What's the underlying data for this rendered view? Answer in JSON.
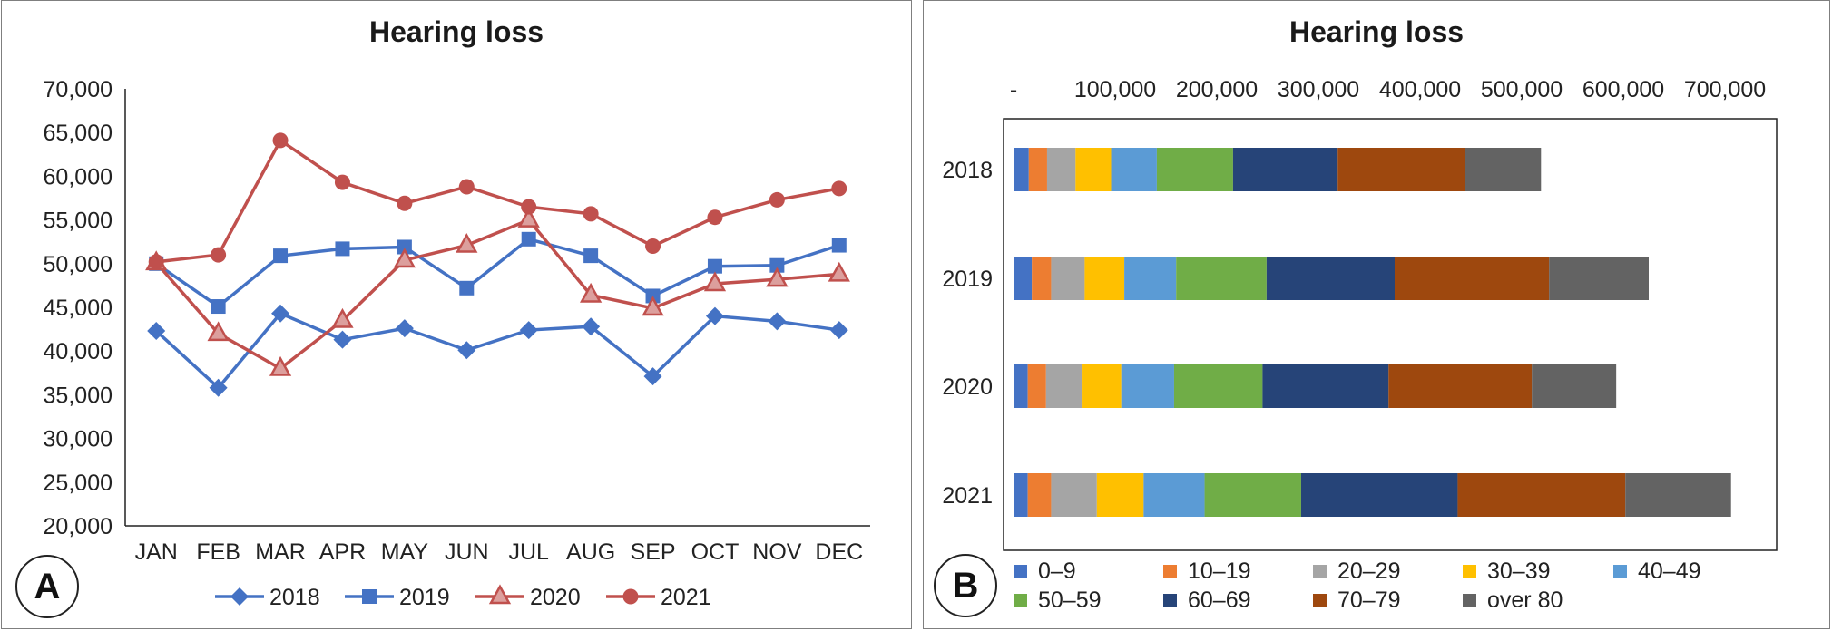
{
  "chart_data": [
    {
      "panel": "A",
      "type": "line",
      "title": "Hearing loss",
      "categories": [
        "JAN",
        "FEB",
        "MAR",
        "APR",
        "MAY",
        "JUN",
        "JUL",
        "AUG",
        "SEP",
        "OCT",
        "NOV",
        "DEC"
      ],
      "y_ticks": [
        "20,000",
        "25,000",
        "30,000",
        "35,000",
        "40,000",
        "45,000",
        "50,000",
        "55,000",
        "60,000",
        "65,000",
        "70,000"
      ],
      "ylim": [
        20000,
        70000
      ],
      "legend_position": "bottom",
      "series": [
        {
          "name": "2018",
          "color": "#4472c4",
          "marker": "diamond",
          "values": [
            42300,
            35800,
            44300,
            41300,
            42600,
            40100,
            42400,
            42800,
            37100,
            44000,
            43400,
            42400
          ]
        },
        {
          "name": "2019",
          "color": "#4472c4",
          "marker": "square",
          "values": [
            50000,
            45100,
            50900,
            51700,
            51900,
            47200,
            52800,
            50900,
            46300,
            49700,
            49800,
            52100
          ]
        },
        {
          "name": "2020",
          "color": "#c0504d",
          "marker": "triangle",
          "values": [
            50100,
            42000,
            38000,
            43500,
            50400,
            52100,
            55000,
            46400,
            44900,
            47700,
            48200,
            48800
          ]
        },
        {
          "name": "2021",
          "color": "#c0504d",
          "marker": "circle",
          "values": [
            50200,
            51000,
            64100,
            59300,
            56900,
            58800,
            56500,
            55700,
            52000,
            55300,
            57300,
            58600
          ]
        }
      ]
    },
    {
      "panel": "B",
      "type": "bar",
      "orientation": "horizontal",
      "stacked": true,
      "title": "Hearing loss",
      "categories": [
        "2018",
        "2019",
        "2020",
        "2021"
      ],
      "x_ticks": [
        "-",
        "100,000",
        "200,000",
        "300,000",
        "400,000",
        "500,000",
        "600,000",
        "700,000"
      ],
      "xlim": [
        0,
        700000
      ],
      "legend_position": "bottom",
      "series": [
        {
          "name": "0–9",
          "color": "#4472c4",
          "values": [
            15000,
            18000,
            14000,
            14000
          ]
        },
        {
          "name": "10–19",
          "color": "#ed7d31",
          "values": [
            18000,
            19000,
            18000,
            23000
          ]
        },
        {
          "name": "20–29",
          "color": "#a5a5a5",
          "values": [
            28000,
            33000,
            35000,
            45000
          ]
        },
        {
          "name": "30–39",
          "color": "#ffc000",
          "values": [
            35000,
            39000,
            39000,
            46000
          ]
        },
        {
          "name": "40–49",
          "color": "#5b9bd5",
          "values": [
            45000,
            51000,
            52000,
            60000
          ]
        },
        {
          "name": "50–59",
          "color": "#70ad47",
          "values": [
            75000,
            89000,
            87000,
            95000
          ]
        },
        {
          "name": "60–69",
          "color": "#264478",
          "values": [
            103000,
            126000,
            124000,
            154000
          ]
        },
        {
          "name": "70–79",
          "color": "#9e480e",
          "values": [
            125000,
            152000,
            141000,
            165000
          ]
        },
        {
          "name": "over 80",
          "color": "#636363",
          "values": [
            75000,
            98000,
            83000,
            104000
          ]
        }
      ]
    }
  ],
  "panels": {
    "A": {
      "badge": "A"
    },
    "B": {
      "badge": "B"
    }
  }
}
